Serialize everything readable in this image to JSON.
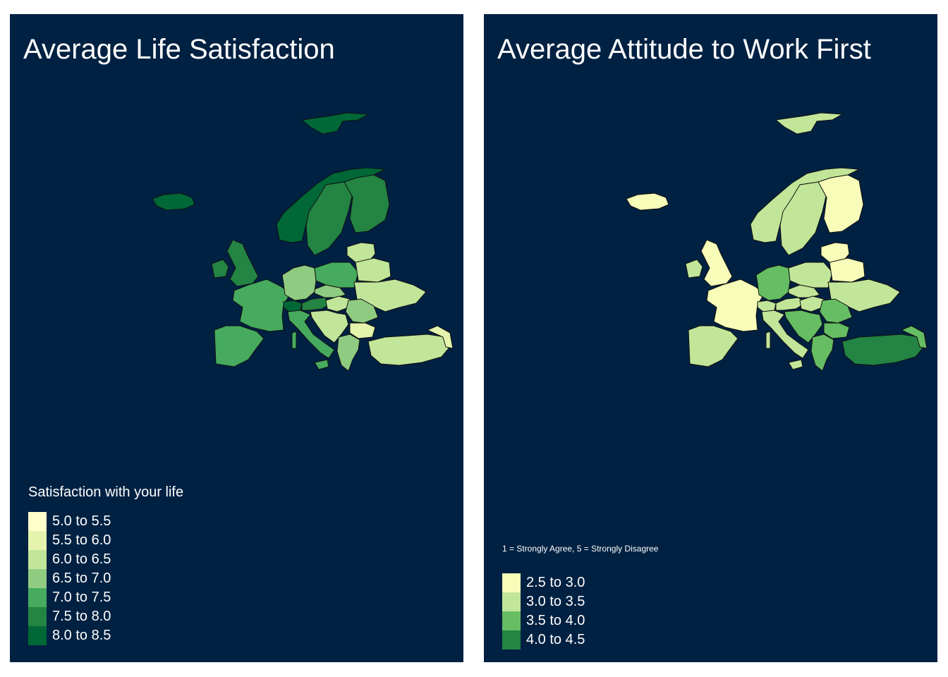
{
  "maps": [
    {
      "title": "Average Life Satisfaction",
      "legend": {
        "title": "Satisfaction with your life",
        "classes": [
          {
            "label": "5.0 to 5.5",
            "color": "#ffffcc"
          },
          {
            "label": "5.5 to 6.0",
            "color": "#e4f4ac"
          },
          {
            "label": "6.0 to 6.5",
            "color": "#c2e699"
          },
          {
            "label": "6.5 to 7.0",
            "color": "#8fcc82"
          },
          {
            "label": "7.0 to 7.5",
            "color": "#46ab5e"
          },
          {
            "label": "7.5 to 8.0",
            "color": "#238443"
          },
          {
            "label": "8.0 to 8.5",
            "color": "#006837"
          }
        ]
      },
      "countries": {
        "svalbard": 6,
        "iceland": 6,
        "norway": 6,
        "sweden": 5,
        "finland": 5,
        "ireland": 5,
        "uk": 5,
        "france": 4,
        "iberia": 4,
        "italy": 4,
        "germany": 3,
        "poland": 4,
        "baltics": 2,
        "belarus": 2,
        "ukraine": 2,
        "czechia": 3,
        "austria": 5,
        "switzerland": 6,
        "hungary": 2,
        "romania": 3,
        "balkans": 2,
        "bulgaria": 1,
        "greece": 3,
        "turkey": 2,
        "caucasus": 1
      }
    },
    {
      "title": "Average Attitude to Work First",
      "legend": {
        "title": "1 = Strongly Agree, 5 = Strongly Disagree",
        "classes": [
          {
            "label": "2.5 to 3.0",
            "color": "#f7fcb9"
          },
          {
            "label": "3.0 to 3.5",
            "color": "#c2e699"
          },
          {
            "label": "3.5 to 4.0",
            "color": "#66bd63"
          },
          {
            "label": "4.0 to 4.5",
            "color": "#238443"
          }
        ]
      },
      "countries": {
        "svalbard": 1,
        "iceland": 0,
        "norway": 1,
        "sweden": 1,
        "finland": 0,
        "ireland": 1,
        "uk": 0,
        "france": 0,
        "iberia": 1,
        "italy": 1,
        "germany": 2,
        "poland": 1,
        "baltics": 0,
        "belarus": 0,
        "ukraine": 1,
        "czechia": 1,
        "austria": 1,
        "switzerland": 1,
        "hungary": 1,
        "romania": 2,
        "balkans": 2,
        "bulgaria": 2,
        "greece": 2,
        "turkey": 3,
        "caucasus": 2
      }
    }
  ]
}
